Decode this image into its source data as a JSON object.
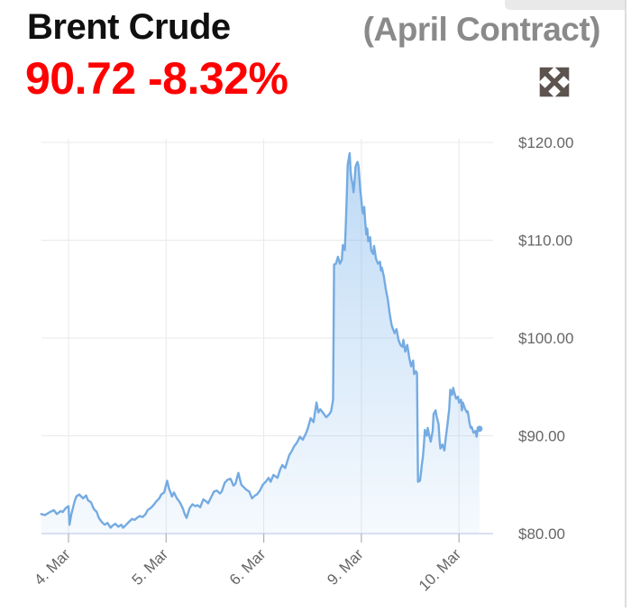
{
  "header": {
    "title": "Brent Crude",
    "contract_label": "(April Contract)",
    "price": "90.72",
    "change_percent": "-8.32%",
    "colors": {
      "title": "#101010",
      "contract": "#8a8a8a",
      "price_change": "#fe0000"
    }
  },
  "toolbar": {
    "expand_icon": "expand-arrows-icon"
  },
  "chart_data": {
    "type": "area",
    "title": "Brent Crude (April Contract) intraday price",
    "legend": "none",
    "grid": true,
    "x_axis": {
      "tick_labels": [
        "4. Mar",
        "5. Mar",
        "6. Mar",
        "9. Mar",
        "10. Mar"
      ],
      "tick_positions": [
        0,
        1,
        2,
        3,
        4
      ],
      "label_rotation_deg": -45,
      "axis_color": "#ccd6eb",
      "tick_color": "#b0b0b0",
      "label_color": "#666666",
      "range_days": [
        -0.28,
        4.35
      ]
    },
    "y_axis": {
      "side": "right",
      "tick_labels": [
        "$80.00",
        "$90.00",
        "$100.00",
        "$110.00",
        "$120.00"
      ],
      "tick_values": [
        80,
        90,
        100,
        110,
        120
      ],
      "min": 80,
      "max": 120.7,
      "grid_color": "#e9e9e9",
      "label_color": "#666666"
    },
    "series": [
      {
        "name": "Brent Crude April Contract",
        "line_color": "#74abe2",
        "fill_base_color": "124,181,236",
        "last_point_marker": true,
        "last_value": 90.72,
        "points": [
          [
            -0.28,
            82.0
          ],
          [
            -0.24,
            81.9
          ],
          [
            -0.19,
            82.2
          ],
          [
            -0.15,
            82.4
          ],
          [
            -0.12,
            82.0
          ],
          [
            -0.08,
            82.3
          ],
          [
            -0.06,
            82.2
          ],
          [
            -0.03,
            82.6
          ],
          [
            0.0,
            82.8
          ],
          [
            0.01,
            80.9
          ],
          [
            0.03,
            82.0
          ],
          [
            0.06,
            83.2
          ],
          [
            0.08,
            83.8
          ],
          [
            0.11,
            84.0
          ],
          [
            0.15,
            83.6
          ],
          [
            0.18,
            83.9
          ],
          [
            0.2,
            83.4
          ],
          [
            0.23,
            83.2
          ],
          [
            0.26,
            82.5
          ],
          [
            0.29,
            82.2
          ],
          [
            0.31,
            81.6
          ],
          [
            0.34,
            81.2
          ],
          [
            0.37,
            80.9
          ],
          [
            0.4,
            81.1
          ],
          [
            0.43,
            80.6
          ],
          [
            0.45,
            80.8
          ],
          [
            0.48,
            81.0
          ],
          [
            0.51,
            80.7
          ],
          [
            0.54,
            80.9
          ],
          [
            0.56,
            80.6
          ],
          [
            0.59,
            80.9
          ],
          [
            0.62,
            81.2
          ],
          [
            0.65,
            81.5
          ],
          [
            0.68,
            81.4
          ],
          [
            0.7,
            81.6
          ],
          [
            0.73,
            81.8
          ],
          [
            0.76,
            81.7
          ],
          [
            0.79,
            82.0
          ],
          [
            0.81,
            82.4
          ],
          [
            0.84,
            82.6
          ],
          [
            0.87,
            82.9
          ],
          [
            0.9,
            83.3
          ],
          [
            0.93,
            83.6
          ],
          [
            0.95,
            84.0
          ],
          [
            0.98,
            84.2
          ],
          [
            1.01,
            85.4
          ],
          [
            1.03,
            84.6
          ],
          [
            1.06,
            83.8
          ],
          [
            1.08,
            84.2
          ],
          [
            1.11,
            83.6
          ],
          [
            1.14,
            83.2
          ],
          [
            1.17,
            82.6
          ],
          [
            1.19,
            82.0
          ],
          [
            1.21,
            81.6
          ],
          [
            1.24,
            82.6
          ],
          [
            1.27,
            83.0
          ],
          [
            1.3,
            82.8
          ],
          [
            1.32,
            82.9
          ],
          [
            1.35,
            82.7
          ],
          [
            1.38,
            83.5
          ],
          [
            1.41,
            83.3
          ],
          [
            1.43,
            83.1
          ],
          [
            1.46,
            83.7
          ],
          [
            1.49,
            84.3
          ],
          [
            1.52,
            84.4
          ],
          [
            1.55,
            84.1
          ],
          [
            1.57,
            84.3
          ],
          [
            1.6,
            85.2
          ],
          [
            1.63,
            85.5
          ],
          [
            1.66,
            85.6
          ],
          [
            1.69,
            84.9
          ],
          [
            1.71,
            85.1
          ],
          [
            1.74,
            86.2
          ],
          [
            1.77,
            85.0
          ],
          [
            1.8,
            84.7
          ],
          [
            1.82,
            84.5
          ],
          [
            1.85,
            84.3
          ],
          [
            1.88,
            83.6
          ],
          [
            1.91,
            83.9
          ],
          [
            1.93,
            84.0
          ],
          [
            1.96,
            84.4
          ],
          [
            1.99,
            85.0
          ],
          [
            2.02,
            85.3
          ],
          [
            2.05,
            85.7
          ],
          [
            2.07,
            85.3
          ],
          [
            2.1,
            86.0
          ],
          [
            2.14,
            85.7
          ],
          [
            2.17,
            86.6
          ],
          [
            2.19,
            87.0
          ],
          [
            2.22,
            86.7
          ],
          [
            2.26,
            88.0
          ],
          [
            2.29,
            88.5
          ],
          [
            2.31,
            88.9
          ],
          [
            2.34,
            89.3
          ],
          [
            2.37,
            89.9
          ],
          [
            2.4,
            89.6
          ],
          [
            2.43,
            90.2
          ],
          [
            2.45,
            90.7
          ],
          [
            2.48,
            91.8
          ],
          [
            2.51,
            91.4
          ],
          [
            2.54,
            93.4
          ],
          [
            2.56,
            92.4
          ],
          [
            2.58,
            92.7
          ],
          [
            2.61,
            92.3
          ],
          [
            2.64,
            91.9
          ],
          [
            2.67,
            92.2
          ],
          [
            2.69,
            92.5
          ],
          [
            2.71,
            93.7
          ],
          [
            2.72,
            107.5
          ],
          [
            2.74,
            107.6
          ],
          [
            2.76,
            108.3
          ],
          [
            2.78,
            107.6
          ],
          [
            2.8,
            108.0
          ],
          [
            2.81,
            109.5
          ],
          [
            2.83,
            109.0
          ],
          [
            2.84,
            111.5
          ],
          [
            2.85,
            114.6
          ],
          [
            2.86,
            117.7
          ],
          [
            2.87,
            118.3
          ],
          [
            2.88,
            118.9
          ],
          [
            2.89,
            117.0
          ],
          [
            2.9,
            116.2
          ],
          [
            2.91,
            115.7
          ],
          [
            2.92,
            114.9
          ],
          [
            2.93,
            116.0
          ],
          [
            2.94,
            117.5
          ],
          [
            2.95,
            117.8
          ],
          [
            2.96,
            118.0
          ],
          [
            2.97,
            117.6
          ],
          [
            2.98,
            116.4
          ],
          [
            2.99,
            115.0
          ],
          [
            3.0,
            114.1
          ],
          [
            3.01,
            113.0
          ],
          [
            3.02,
            112.7
          ],
          [
            3.03,
            113.4
          ],
          [
            3.04,
            111.8
          ],
          [
            3.05,
            110.6
          ],
          [
            3.06,
            111.2
          ],
          [
            3.07,
            109.9
          ],
          [
            3.09,
            110.3
          ],
          [
            3.1,
            109.0
          ],
          [
            3.12,
            108.6
          ],
          [
            3.13,
            109.4
          ],
          [
            3.15,
            108.1
          ],
          [
            3.17,
            107.6
          ],
          [
            3.19,
            107.8
          ],
          [
            3.2,
            106.9
          ],
          [
            3.21,
            107.2
          ],
          [
            3.23,
            106.3
          ],
          [
            3.25,
            105.0
          ],
          [
            3.27,
            104.0
          ],
          [
            3.29,
            102.5
          ],
          [
            3.31,
            101.3
          ],
          [
            3.32,
            101.0
          ],
          [
            3.34,
            100.5
          ],
          [
            3.36,
            100.9
          ],
          [
            3.38,
            99.8
          ],
          [
            3.4,
            99.3
          ],
          [
            3.42,
            99.1
          ],
          [
            3.43,
            99.8
          ],
          [
            3.45,
            98.6
          ],
          [
            3.47,
            99.3
          ],
          [
            3.49,
            98.0
          ],
          [
            3.51,
            97.1
          ],
          [
            3.53,
            97.7
          ],
          [
            3.54,
            96.3
          ],
          [
            3.56,
            96.6
          ],
          [
            3.57,
            96.4
          ],
          [
            3.58,
            85.3
          ],
          [
            3.6,
            85.4
          ],
          [
            3.61,
            86.2
          ],
          [
            3.62,
            87.1
          ],
          [
            3.63,
            87.8
          ],
          [
            3.64,
            89.0
          ],
          [
            3.65,
            90.6
          ],
          [
            3.67,
            90.0
          ],
          [
            3.68,
            90.8
          ],
          [
            3.69,
            90.3
          ],
          [
            3.71,
            89.4
          ],
          [
            3.73,
            90.5
          ],
          [
            3.74,
            92.2
          ],
          [
            3.76,
            92.6
          ],
          [
            3.77,
            92.0
          ],
          [
            3.79,
            91.2
          ],
          [
            3.8,
            89.7
          ],
          [
            3.81,
            88.7
          ],
          [
            3.83,
            89.1
          ],
          [
            3.85,
            88.5
          ],
          [
            3.86,
            89.4
          ],
          [
            3.88,
            91.0
          ],
          [
            3.9,
            92.8
          ],
          [
            3.91,
            94.7
          ],
          [
            3.93,
            94.2
          ],
          [
            3.94,
            94.9
          ],
          [
            3.95,
            94.5
          ],
          [
            3.97,
            93.8
          ],
          [
            3.99,
            94.0
          ],
          [
            4.0,
            93.4
          ],
          [
            4.02,
            93.7
          ],
          [
            4.03,
            92.6
          ],
          [
            4.04,
            93.4
          ],
          [
            4.06,
            92.8
          ],
          [
            4.08,
            92.4
          ],
          [
            4.09,
            92.5
          ],
          [
            4.11,
            91.2
          ],
          [
            4.12,
            90.8
          ],
          [
            4.13,
            90.9
          ],
          [
            4.15,
            90.3
          ],
          [
            4.17,
            90.5
          ],
          [
            4.18,
            89.9
          ],
          [
            4.19,
            90.6
          ],
          [
            4.21,
            90.72
          ]
        ]
      }
    ]
  }
}
